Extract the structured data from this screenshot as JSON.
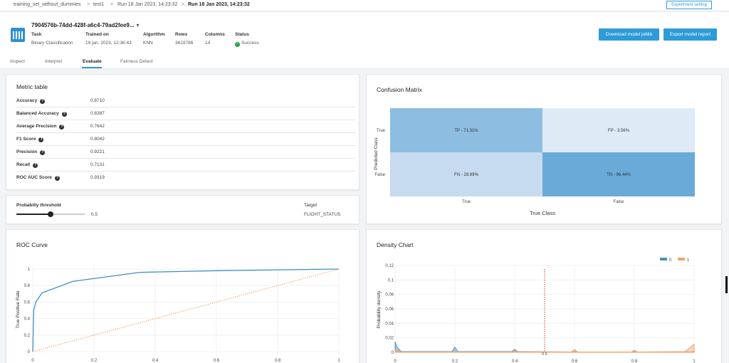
{
  "breadcrumb": {
    "items": [
      "training_set_without_dummies",
      "test1",
      "Run 18 Jan 2023, 14:23:32"
    ],
    "current": "Run 18 Jan 2023, 14:23:32",
    "separator": ">"
  },
  "experiment_button": "Experiment setting",
  "model": {
    "id": "7904576b-74dd-428f-a6c4-79ad2fee9...",
    "dropdown_icon": "caret-down-icon",
    "meta": [
      {
        "label": "Task",
        "value": "Binary Classification"
      },
      {
        "label": "Trained on",
        "value": "19 jan. 2023, 12:36:43"
      },
      {
        "label": "Algorithm",
        "value": "KNN"
      },
      {
        "label": "Rows",
        "value": "3619786"
      },
      {
        "label": "Columns",
        "value": "14"
      },
      {
        "label": "Status",
        "value": "Success"
      }
    ]
  },
  "actions": {
    "download": "Download model joblib",
    "export": "Export model report"
  },
  "tabs": [
    "Inspect",
    "Interpret",
    "Evaluate",
    "Fairness Detect"
  ],
  "active_tab": "Evaluate",
  "metric_table": {
    "title": "Metric table",
    "rows": [
      {
        "name": "Accuracy",
        "value": "0.8710"
      },
      {
        "name": "Balanced Accuracy",
        "value": "0.8387"
      },
      {
        "name": "Average Precision",
        "value": "0.7642"
      },
      {
        "name": "F1 Score",
        "value": "0.8042"
      },
      {
        "name": "Precision",
        "value": "0.9221"
      },
      {
        "name": "Recall",
        "value": "0.7131"
      },
      {
        "name": "ROC AUC Score",
        "value": "0.9319"
      }
    ]
  },
  "threshold": {
    "label": "Probabiliy threshold",
    "value": 0.5,
    "value_text": "0.5",
    "target_label": "Target",
    "target_value": "FLIGHT_STATUS"
  },
  "confusion": {
    "title": "Confusion Matrix",
    "xlabel": "True Class",
    "ylabel": "Predicted Class",
    "x_ticks": [
      "True",
      "False"
    ],
    "y_ticks": [
      "True",
      "False"
    ],
    "cells": [
      {
        "label": "TP - 71.31%",
        "color": "#8dbde0"
      },
      {
        "label": "FP - 3.56%",
        "color": "#deebf7"
      },
      {
        "label": "FN - 28.69%",
        "color": "#c6dbef"
      },
      {
        "label": "TN - 96.44%",
        "color": "#6aaad8"
      }
    ]
  },
  "roc": {
    "title": "ROC Curve",
    "ylabel": "True Positive Rate",
    "x_ticks": [
      "0",
      "0.2",
      "0.4",
      "0.6",
      "0.8",
      "1"
    ],
    "y_ticks": [
      "0",
      "0.2",
      "0.4",
      "0.6",
      "0.8",
      "1"
    ]
  },
  "density": {
    "title": "Density Chart",
    "ylabel": "Probability density",
    "legend": [
      {
        "name": "0",
        "color": "#4a8fc1"
      },
      {
        "name": "1",
        "color": "#f0a36b"
      }
    ],
    "x_ticks": [
      "0",
      "0.2",
      "0.4",
      "0.6",
      "0.8",
      "1"
    ],
    "y_ticks": [
      "0",
      "0.02",
      "0.04",
      "0.06",
      "0.08",
      "0.1",
      "0.12"
    ],
    "threshold_label": "0.5"
  },
  "chart_data": [
    {
      "type": "heatmap",
      "title": "Confusion Matrix",
      "xlabel": "True Class",
      "ylabel": "Predicted Class",
      "x": [
        "True",
        "False"
      ],
      "y": [
        "True",
        "False"
      ],
      "values": [
        [
          71.31,
          3.56
        ],
        [
          28.69,
          96.44
        ]
      ]
    },
    {
      "type": "line",
      "title": "ROC Curve",
      "ylabel": "True Positive Rate",
      "xlim": [
        0,
        1
      ],
      "ylim": [
        0,
        1
      ],
      "grid": true,
      "series": [
        {
          "color": "#3d8fc0",
          "dash": "solid",
          "x": [
            0,
            0.003,
            0.01,
            0.03,
            0.13,
            0.35,
            0.6,
            1.0
          ],
          "y": [
            0,
            0.5,
            0.6,
            0.71,
            0.85,
            0.96,
            0.98,
            1.0
          ]
        },
        {
          "color": "#f08a3c",
          "dash": "dotted",
          "x": [
            0,
            1
          ],
          "y": [
            0,
            1
          ]
        }
      ]
    },
    {
      "type": "area",
      "title": "Density Chart",
      "ylabel": "Probability density",
      "xlim": [
        0,
        1
      ],
      "ylim": [
        0,
        0.12
      ],
      "grid": true,
      "legend_position": "top-right",
      "threshold": 0.5,
      "series": [
        {
          "name": "0",
          "color": "#4a8fc1",
          "x": [
            0,
            0.005,
            0.02,
            0.19,
            0.2,
            0.21,
            0.39,
            0.4,
            0.41,
            0.59,
            0.6,
            0.61,
            0.79,
            0.8,
            0.81,
            0.99,
            1.0
          ],
          "y": [
            0.015,
            0.008,
            0.001,
            0.001,
            0.007,
            0.001,
            0.001,
            0.004,
            0.001,
            0.0005,
            0.001,
            0.0005,
            0.0005,
            0.0008,
            0.0005,
            0.0005,
            0.001
          ]
        },
        {
          "name": "1",
          "color": "#f0a36b",
          "x": [
            0,
            0.02,
            0.19,
            0.2,
            0.21,
            0.39,
            0.4,
            0.41,
            0.59,
            0.6,
            0.61,
            0.79,
            0.8,
            0.81,
            0.97,
            1.0
          ],
          "y": [
            0.003,
            0.0005,
            0.0005,
            0.001,
            0.0005,
            0.0005,
            0.002,
            0.0005,
            0.0005,
            0.004,
            0.0005,
            0.0005,
            0.003,
            0.0005,
            0.001,
            0.011
          ]
        }
      ]
    }
  ]
}
